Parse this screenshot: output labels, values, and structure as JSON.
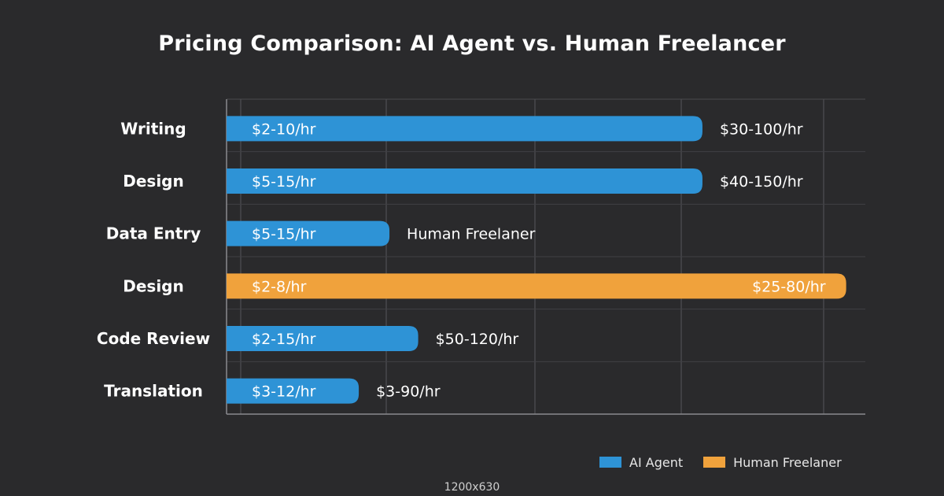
{
  "chart_data": {
    "type": "bar",
    "orientation": "horizontal",
    "title": "Pricing Comparison: AI Agent vs. Human Freelancer",
    "categories": [
      "Writing",
      "Design",
      "Data Entry",
      "Design",
      "Code Review",
      "Translation"
    ],
    "bars": [
      {
        "category": "Writing",
        "value": 10,
        "series": "AI Agent",
        "inside_label": "$2-10/hr",
        "outside_label": "$30-100/hr"
      },
      {
        "category": "Design",
        "value": 15,
        "series": "AI Agent",
        "inside_label": "$5-15/hr",
        "outside_label": "$40-150/hr"
      },
      {
        "category": "Data Entry",
        "value": 15,
        "series": "AI Agent",
        "inside_label": "$5-15/hr",
        "outside_label": "Human Freelaner"
      },
      {
        "category": "Design",
        "value": 8,
        "series": "Human Freelaner",
        "inside_label": "$2-8/hr",
        "outside_label": "$25-80/hr"
      },
      {
        "category": "Code Review",
        "value": 15,
        "series": "AI Agent",
        "inside_label": "$2-15/hr",
        "outside_label": "$50-120/hr"
      },
      {
        "category": "Translation",
        "value": 12,
        "series": "AI Agent",
        "inside_label": "$3-12/hr",
        "outside_label": "$3-90/hr"
      }
    ],
    "bar_fraction": [
      0.745,
      0.745,
      0.255,
      0.97,
      0.3,
      0.207
    ],
    "series": [
      {
        "name": "AI Agent",
        "color": "#2e93d6"
      },
      {
        "name": "Human Freelaner",
        "color": "#f0a23c"
      }
    ],
    "grid": true,
    "legend_position": "bottom-right"
  },
  "legend": {
    "ai_label": "AI Agent",
    "human_label": "Human Freelaner"
  },
  "footer": "1200x630"
}
